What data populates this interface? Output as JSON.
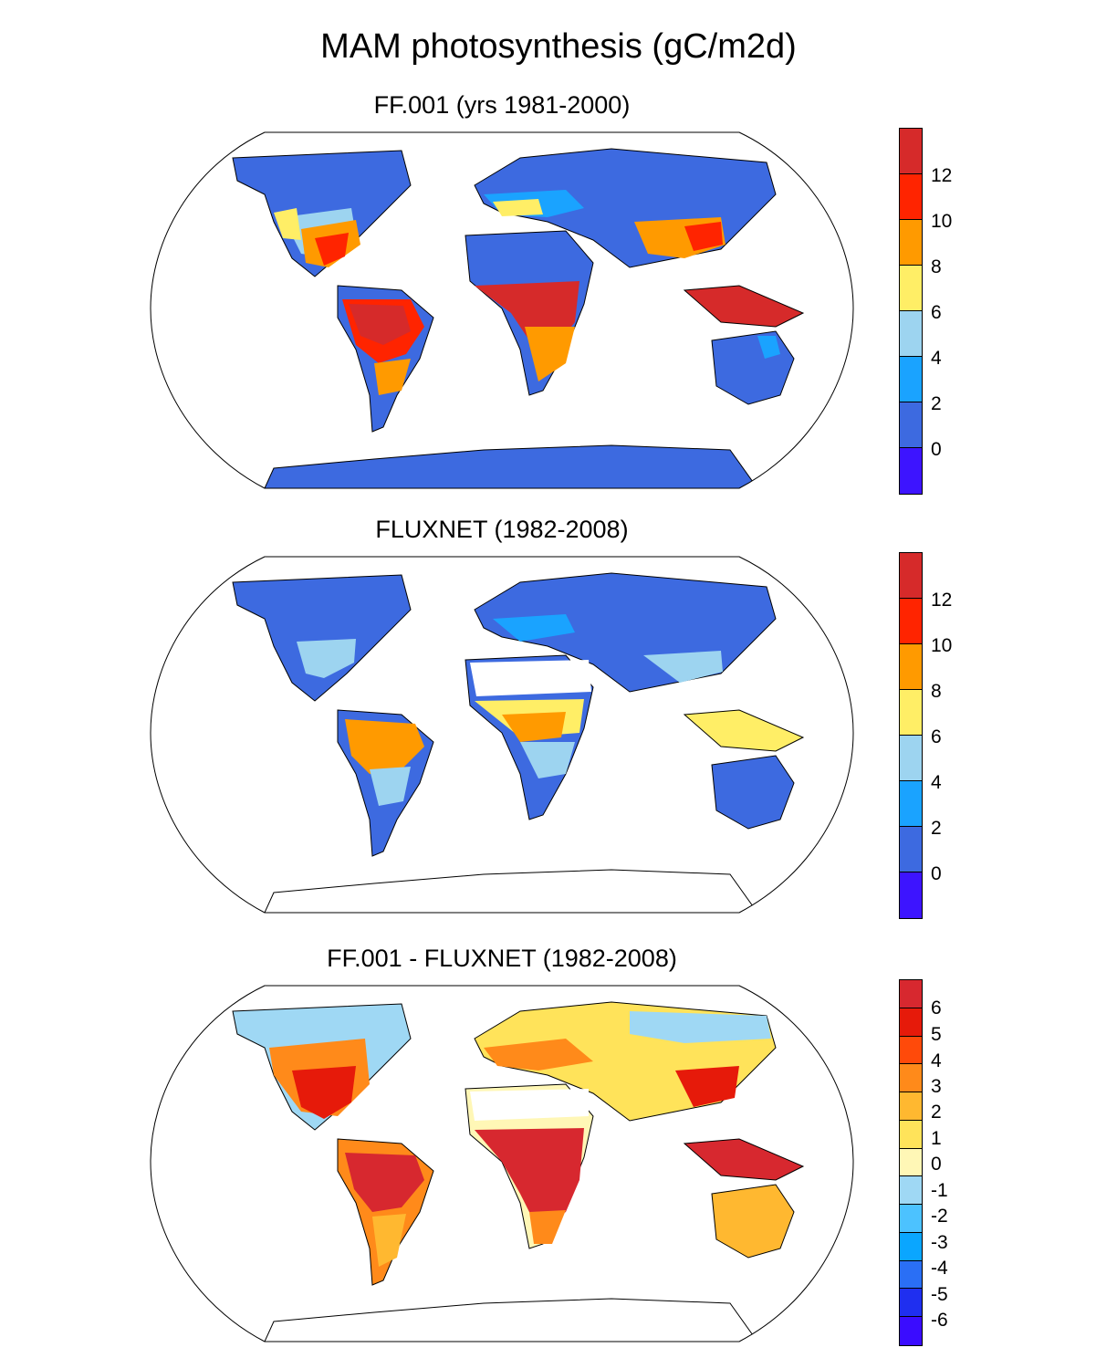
{
  "title": "MAM photosynthesis (gC/m2d)",
  "colors": {
    "c_m6": "#3a0cff",
    "c_m5": "#1f2ff0",
    "c_m4": "#2a6ff5",
    "c_m3": "#0aa6ff",
    "c_m2": "#4cc2ff",
    "c_m1": "#9fd8f4",
    "c_0": "#fff7b6",
    "c_1": "#ffe35a",
    "c_2": "#ffb830",
    "c_3": "#ff8a1a",
    "c_4": "#ff4a0a",
    "c_5": "#e61a0a",
    "c_6": "#d7282f",
    "abs_below": "#3d14ff",
    "abs_0": "#3d6ae0",
    "abs_2": "#1aa3ff",
    "abs_4": "#9dd4f0",
    "abs_6": "#ffee66",
    "abs_8": "#ff9a00",
    "abs_10": "#ff2400",
    "abs_12": "#d62a2a"
  },
  "panels": [
    {
      "title": "FF.001 (yrs 1981-2000)",
      "colorbar": {
        "colors": [
          "#d62a2a",
          "#ff2400",
          "#ff9a00",
          "#ffee66",
          "#9dd4f0",
          "#1aa3ff",
          "#3d6ae0",
          "#3d14ff"
        ],
        "labels": [
          "12",
          "10",
          "8",
          "6",
          "4",
          "2",
          "0"
        ]
      }
    },
    {
      "title": "FLUXNET (1982-2008)",
      "colorbar": {
        "colors": [
          "#d62a2a",
          "#ff2400",
          "#ff9a00",
          "#ffee66",
          "#9dd4f0",
          "#1aa3ff",
          "#3d6ae0",
          "#3d14ff"
        ],
        "labels": [
          "12",
          "10",
          "8",
          "6",
          "4",
          "2",
          "0"
        ]
      }
    },
    {
      "title": "FF.001 - FLUXNET (1982-2008)",
      "colorbar": {
        "colors": [
          "#d7282f",
          "#e61a0a",
          "#ff4a0a",
          "#ff8a1a",
          "#ffb830",
          "#ffe35a",
          "#fff7b6",
          "#9fd8f4",
          "#4cc2ff",
          "#0aa6ff",
          "#2a6ff5",
          "#1f2ff0",
          "#3a0cff"
        ],
        "labels": [
          "6",
          "5",
          "4",
          "3",
          "2",
          "1",
          "0",
          "-1",
          "-2",
          "-3",
          "-4",
          "-5",
          "-6"
        ]
      }
    }
  ]
}
